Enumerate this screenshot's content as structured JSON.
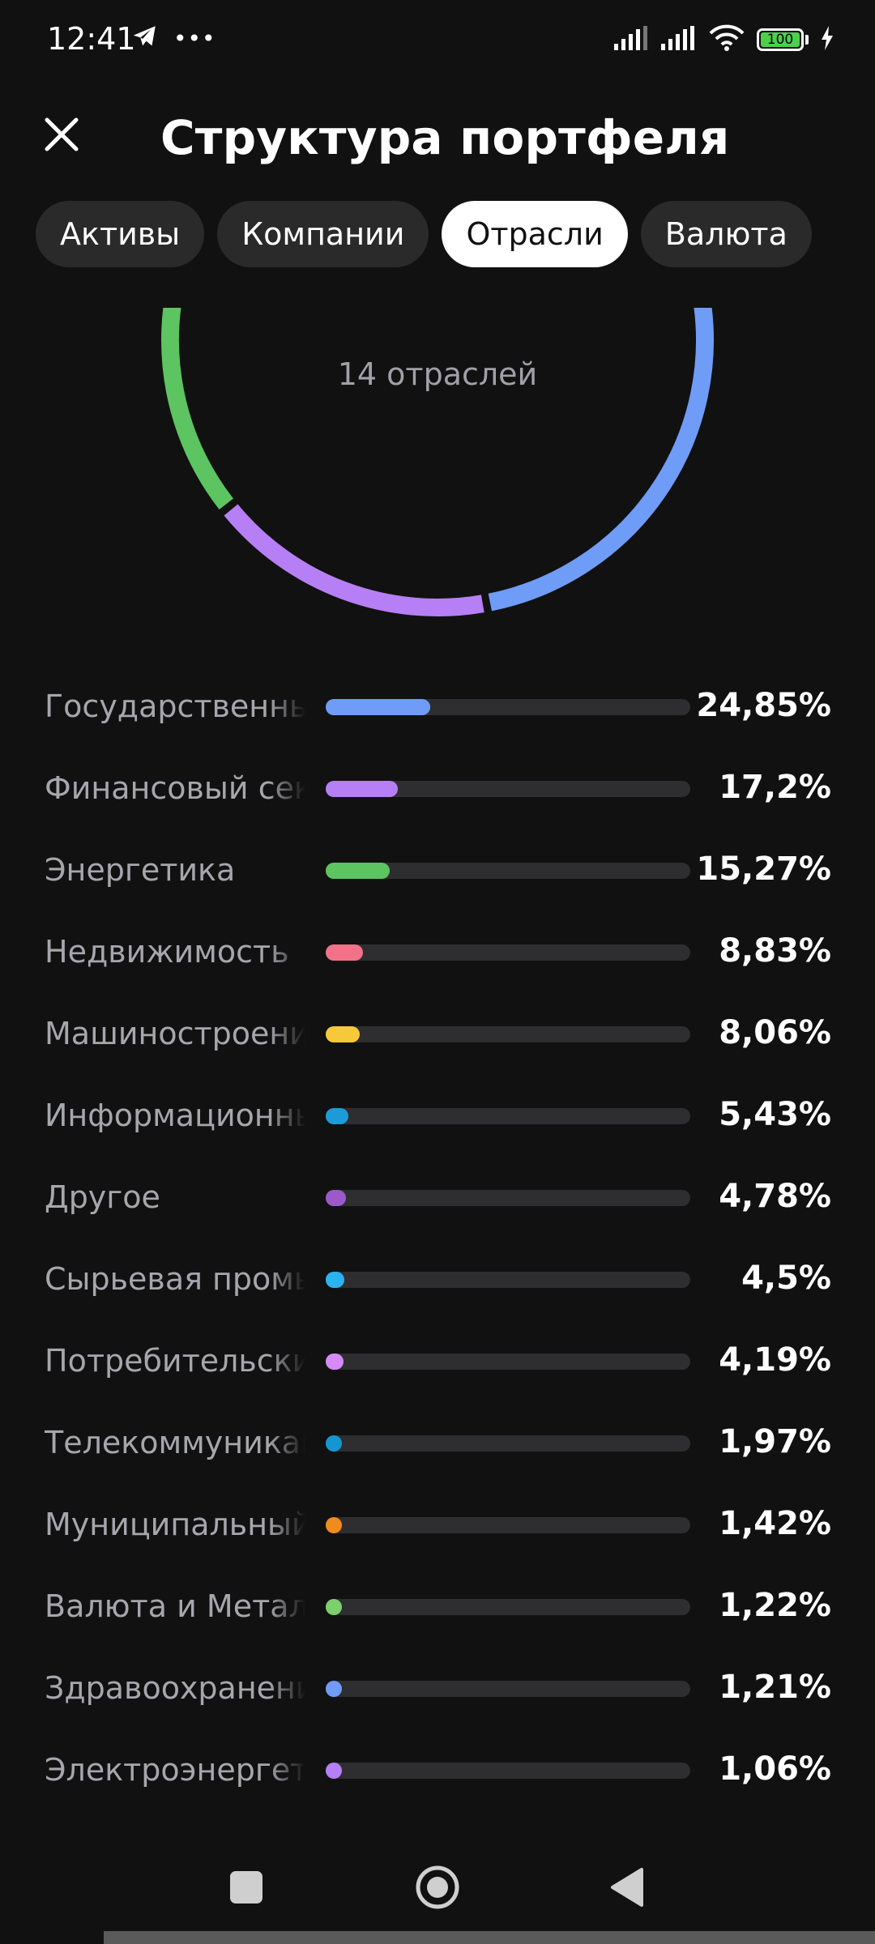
{
  "status_bar": {
    "time": "12:41",
    "more_icon": "•••",
    "battery_level": "100",
    "icons": [
      "telegram-icon",
      "more-dots-icon",
      "signal-icon",
      "signal-icon",
      "wifi-icon",
      "battery-icon",
      "charging-icon"
    ]
  },
  "header": {
    "title": "Структура портфеля",
    "close_icon": "close-icon"
  },
  "tabs": [
    {
      "label": "Активы",
      "active": false
    },
    {
      "label": "Компании",
      "active": false
    },
    {
      "label": "Отрасли",
      "active": true
    },
    {
      "label": "Валюта",
      "active": false
    }
  ],
  "donut": {
    "center_label": "14 отраслей"
  },
  "chart_data": {
    "type": "bar",
    "categories": [
      "Государственные",
      "Финансовый сек",
      "Энергетика",
      "Недвижимость",
      "Машиностроение",
      "Информационны",
      "Другое",
      "Сырьевая промы",
      "Потребительские",
      "Телекоммуникац",
      "Муниципальный",
      "Валюта и Металл",
      "Здравоохранение",
      "Электроэнергети"
    ],
    "values": [
      24.85,
      17.2,
      15.27,
      8.83,
      8.06,
      5.43,
      4.78,
      4.5,
      4.19,
      1.97,
      1.42,
      1.22,
      1.21,
      1.06
    ],
    "value_labels": [
      "24,85%",
      "17,2%",
      "15,27%",
      "8,83%",
      "8,06%",
      "5,43%",
      "4,78%",
      "4,5%",
      "4,19%",
      "1,97%",
      "1,42%",
      "1,22%",
      "1,21%",
      "1,06%"
    ],
    "colors": [
      "#6f9cf7",
      "#b77ff5",
      "#5cc461",
      "#f27389",
      "#f7c93a",
      "#1d9bd8",
      "#9b59c9",
      "#2bb3f0",
      "#d68af7",
      "#1596d0",
      "#f08c1e",
      "#7ccf6c",
      "#6f9cf7",
      "#b77ff5"
    ],
    "bar_max_percent": 100
  },
  "nav": {
    "icons": [
      "recents-square-icon",
      "home-circle-icon",
      "back-triangle-icon"
    ]
  }
}
